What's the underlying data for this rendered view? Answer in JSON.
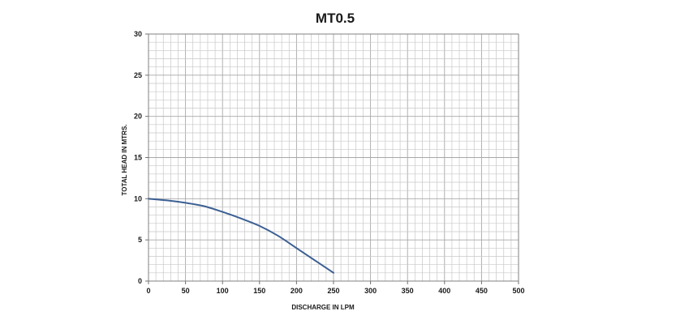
{
  "chart_data": {
    "type": "line",
    "title": "MT0.5",
    "xlabel": "DISCHARGE IN LPM",
    "ylabel": "TOTAL HEAD IN MTRS.",
    "xlim": [
      0,
      500
    ],
    "ylim": [
      0,
      30
    ],
    "x_ticks": [
      "0",
      "50",
      "100",
      "150",
      "200",
      "250",
      "300",
      "350",
      "400",
      "450",
      "500"
    ],
    "y_ticks": [
      "0",
      "5",
      "10",
      "15",
      "20",
      "25",
      "30"
    ],
    "grid": true,
    "legend": "none",
    "series": [
      {
        "color": "#3b5f93",
        "x": [
          0,
          25,
          50,
          75,
          100,
          125,
          150,
          175,
          200,
          225,
          250
        ],
        "y": [
          10,
          9.8,
          9.5,
          9.1,
          8.4,
          7.6,
          6.7,
          5.5,
          4.0,
          2.5,
          1.0
        ]
      }
    ]
  }
}
